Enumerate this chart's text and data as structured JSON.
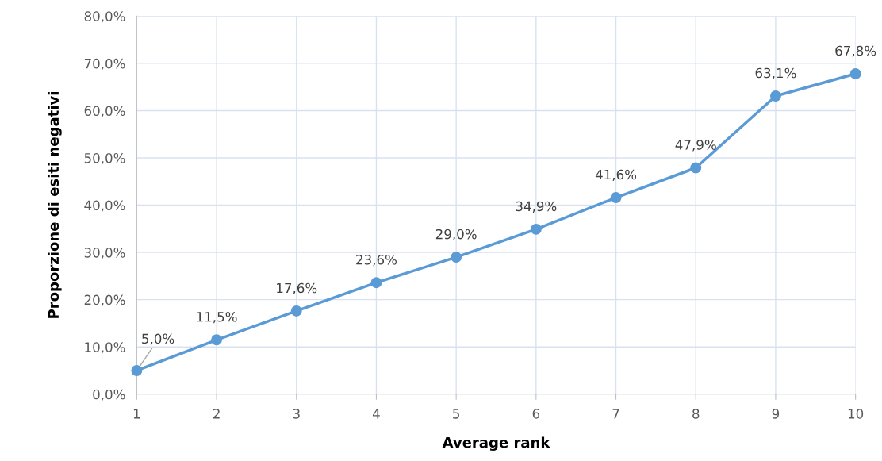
{
  "chart_data": {
    "type": "line",
    "xlabel": "Average rank",
    "ylabel": "Proporzione di esiti negativi",
    "x": [
      1,
      2,
      3,
      4,
      5,
      6,
      7,
      8,
      9,
      10
    ],
    "series": [
      {
        "color": "#5b9bd5",
        "values": [
          5.0,
          11.5,
          17.6,
          23.6,
          29.0,
          34.9,
          41.6,
          47.9,
          63.1,
          67.8
        ],
        "value_labels": [
          "5,0%",
          "11,5%",
          "17,6%",
          "23,6%",
          "29,0%",
          "34,9%",
          "41,6%",
          "47,9%",
          "63,1%",
          "67,8%"
        ]
      }
    ],
    "xlim": [
      1,
      10
    ],
    "xticks": [
      1,
      2,
      3,
      4,
      5,
      6,
      7,
      8,
      9,
      10
    ],
    "ylim": [
      0,
      80
    ],
    "yticks": [
      {
        "value": 0,
        "label": "0,0%"
      },
      {
        "value": 10,
        "label": "10,0%"
      },
      {
        "value": 20,
        "label": "20,0%"
      },
      {
        "value": 30,
        "label": "30,0%"
      },
      {
        "value": 40,
        "label": "40,0%"
      },
      {
        "value": 50,
        "label": "50,0%"
      },
      {
        "value": 60,
        "label": "60,0%"
      },
      {
        "value": 70,
        "label": "70,0%"
      },
      {
        "value": 80,
        "label": "80,0%"
      }
    ],
    "grid": true,
    "marker": "circle",
    "line_style": "solid",
    "legend": false
  }
}
